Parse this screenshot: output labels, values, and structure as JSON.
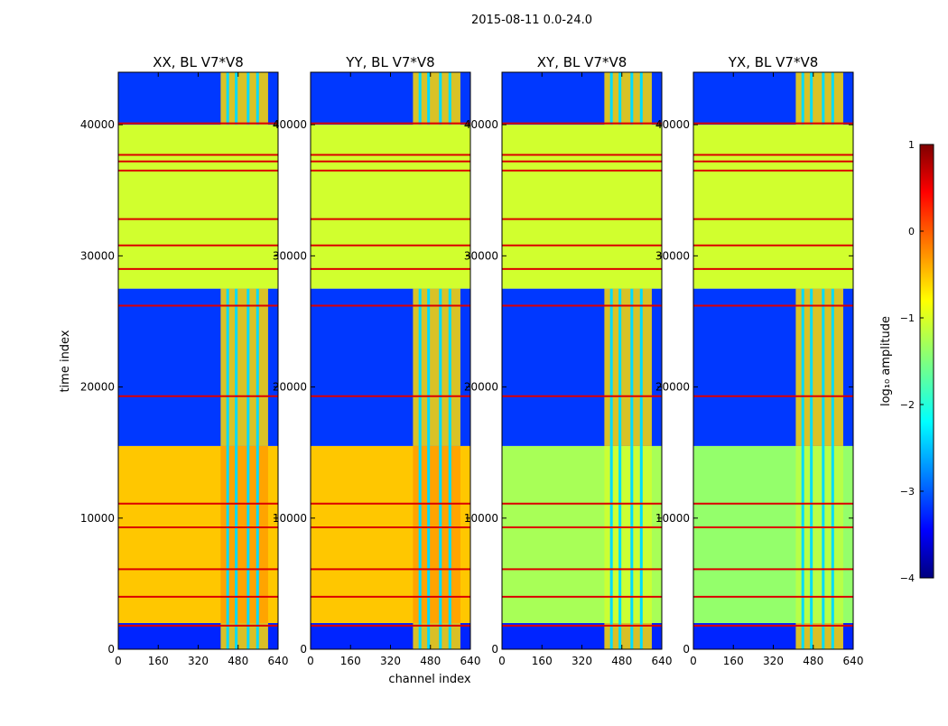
{
  "chart_data": {
    "type": "heatmap",
    "suptitle": "2015-08-11 0.0-24.0",
    "xlabel": "channel index",
    "ylabel": "time index",
    "xlim": [
      0,
      640
    ],
    "ylim": [
      0,
      44000
    ],
    "xticks": [
      "0",
      "160",
      "320",
      "480",
      "640"
    ],
    "yticks": [
      "0",
      "10000",
      "20000",
      "30000",
      "40000"
    ],
    "panels": [
      {
        "title": "XX, BL V7*V8",
        "bottom_level": -0.6,
        "bright_cols": [
          [
            410,
            600
          ]
        ]
      },
      {
        "title": "YY, BL V7*V8",
        "bottom_level": -0.6,
        "bright_cols": [
          [
            410,
            600
          ]
        ]
      },
      {
        "title": "XY, BL V7*V8",
        "bottom_level": -1.3,
        "bright_cols": [
          [
            410,
            600
          ]
        ]
      },
      {
        "title": "YX, BL V7*V8",
        "bottom_level": -1.4,
        "bright_cols": [
          [
            410,
            600
          ]
        ]
      }
    ],
    "bands": [
      {
        "from": 0,
        "to": 2000,
        "level": -3.2
      },
      {
        "from": 2000,
        "to": 15500,
        "level": "bottom"
      },
      {
        "from": 15500,
        "to": 27500,
        "level": -3.1
      },
      {
        "from": 27500,
        "to": 40000,
        "level": -1.1
      },
      {
        "from": 40000,
        "to": 44000,
        "level": -3.1
      }
    ],
    "red_lines": [
      1800,
      4000,
      6100,
      9300,
      11100,
      19300,
      26200,
      29000,
      30800,
      32800,
      36500,
      37200,
      37700,
      40100
    ],
    "colorbar": {
      "label": "log₁₀ amplitude",
      "range": [
        -4,
        1
      ],
      "ticks": [
        "1",
        "0",
        "−1",
        "−2",
        "−3",
        "−4"
      ]
    }
  }
}
